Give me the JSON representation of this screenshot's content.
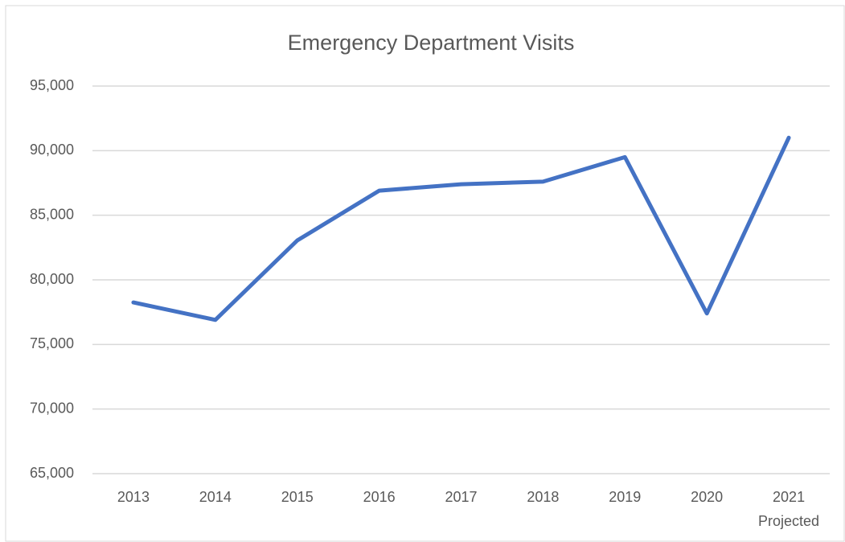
{
  "chart_data": {
    "type": "line",
    "title": "Emergency Department Visits",
    "categories": [
      "2013",
      "2014",
      "2015",
      "2016",
      "2017",
      "2018",
      "2019",
      "2020",
      "2021"
    ],
    "annotation": "Projected",
    "series": [
      {
        "name": "Emergency Department Visits",
        "color": "#4472c4",
        "values": [
          78250,
          76900,
          83050,
          86900,
          87400,
          87600,
          89500,
          77400,
          91000
        ]
      }
    ],
    "ylim": [
      65000,
      95000
    ],
    "yticks": [
      {
        "value": 65000,
        "label": "65,000"
      },
      {
        "value": 70000,
        "label": "70,000"
      },
      {
        "value": 75000,
        "label": "75,000"
      },
      {
        "value": 80000,
        "label": "80,000"
      },
      {
        "value": 85000,
        "label": "85,000"
      },
      {
        "value": 90000,
        "label": "90,000"
      },
      {
        "value": 95000,
        "label": "95,000"
      }
    ],
    "grid": true
  }
}
